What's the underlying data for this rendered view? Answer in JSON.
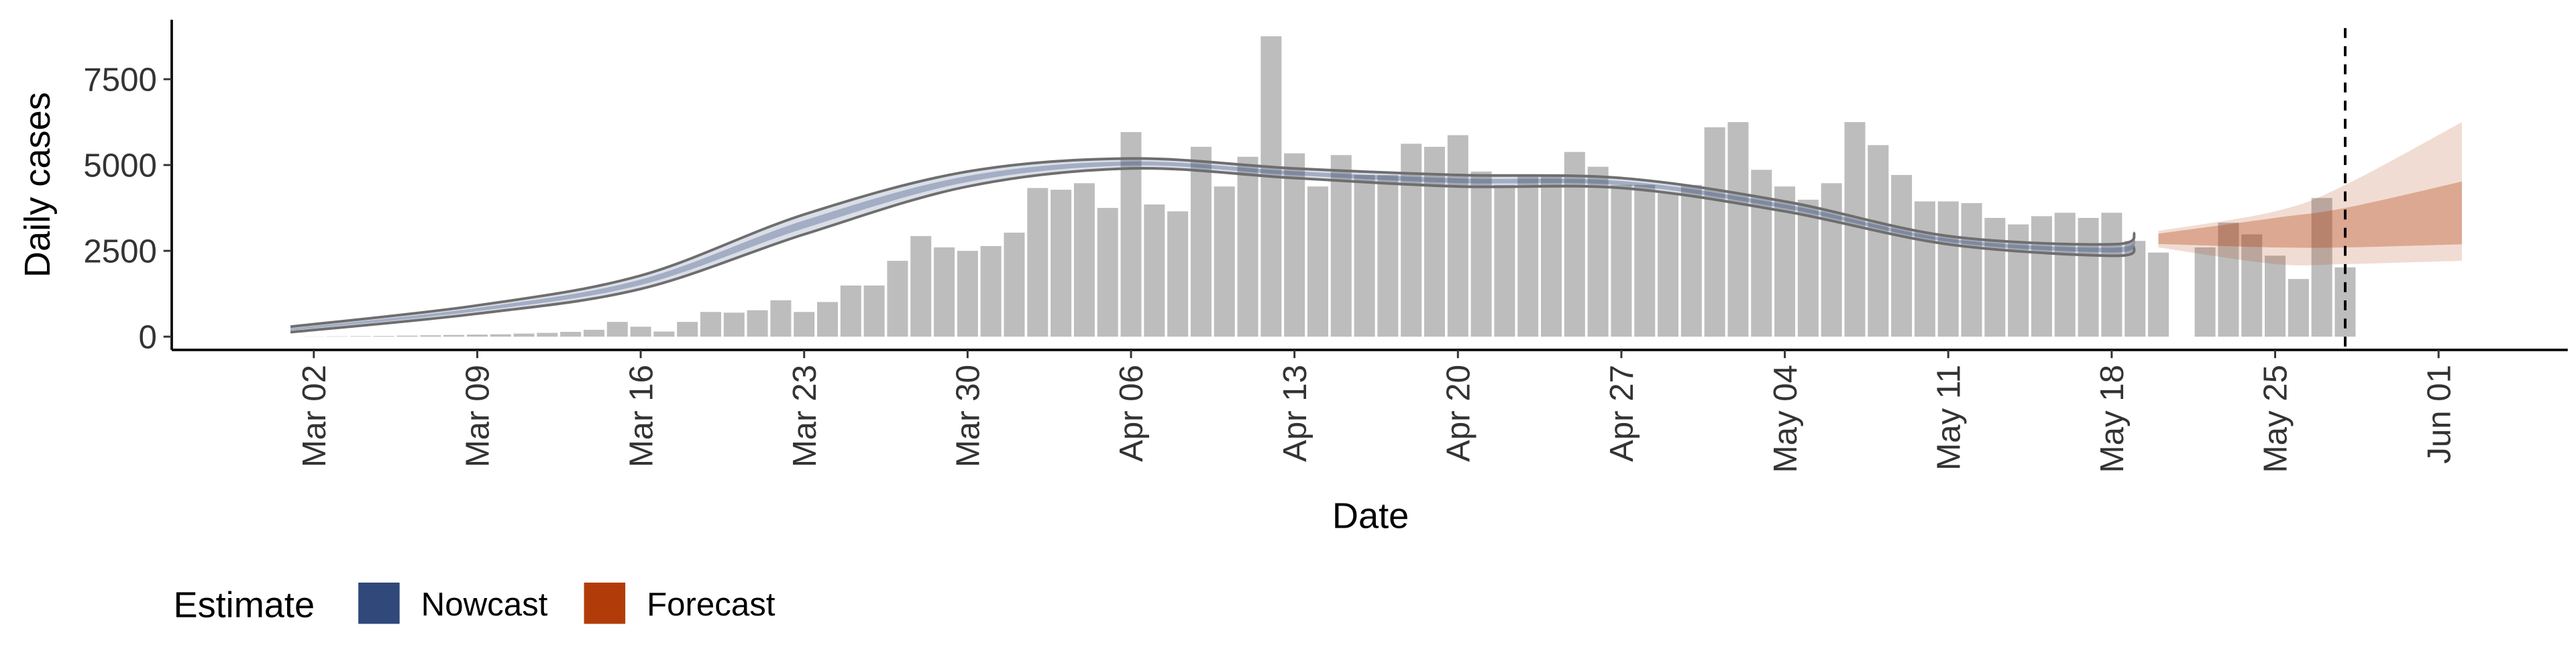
{
  "chart_data": {
    "type": "bar-band",
    "x_label": "Date",
    "y_label": "Daily cases",
    "legend_title": "Estimate",
    "categories": [
      "Mar 01",
      "Mar 02",
      "Mar 03",
      "Mar 04",
      "Mar 05",
      "Mar 06",
      "Mar 07",
      "Mar 08",
      "Mar 09",
      "Mar 10",
      "Mar 11",
      "Mar 12",
      "Mar 13",
      "Mar 14",
      "Mar 15",
      "Mar 16",
      "Mar 17",
      "Mar 18",
      "Mar 19",
      "Mar 20",
      "Mar 21",
      "Mar 22",
      "Mar 23",
      "Mar 24",
      "Mar 25",
      "Mar 26",
      "Mar 27",
      "Mar 28",
      "Mar 29",
      "Mar 30",
      "Mar 31",
      "Apr 01",
      "Apr 02",
      "Apr 03",
      "Apr 04",
      "Apr 05",
      "Apr 06",
      "Apr 07",
      "Apr 08",
      "Apr 09",
      "Apr 10",
      "Apr 11",
      "Apr 12",
      "Apr 13",
      "Apr 14",
      "Apr 15",
      "Apr 16",
      "Apr 17",
      "Apr 18",
      "Apr 19",
      "Apr 20",
      "Apr 21",
      "Apr 22",
      "Apr 23",
      "Apr 24",
      "Apr 25",
      "Apr 26",
      "Apr 27",
      "Apr 28",
      "Apr 29",
      "Apr 30",
      "May 01",
      "May 02",
      "May 03",
      "May 04",
      "May 05",
      "May 06",
      "May 07",
      "May 08",
      "May 09",
      "May 10",
      "May 11",
      "May 12",
      "May 13",
      "May 14",
      "May 15",
      "May 16",
      "May 17",
      "May 18",
      "May 19",
      "May 20",
      "May 21",
      "May 22",
      "May 23",
      "May 24",
      "May 25",
      "May 26",
      "May 27",
      "May 28",
      "May 29",
      "May 30",
      "May 31",
      "Jun 01",
      "Jun 02",
      "Jun 03"
    ],
    "values": [
      0,
      5,
      10,
      15,
      20,
      30,
      40,
      50,
      60,
      70,
      90,
      110,
      140,
      200,
      430,
      290,
      150,
      430,
      720,
      700,
      770,
      1060,
      720,
      1010,
      1490,
      1490,
      2210,
      2930,
      2600,
      2500,
      2640,
      3030,
      4330,
      4280,
      4470,
      3750,
      5960,
      3850,
      3650,
      5530,
      4375,
      5240,
      8750,
      5340,
      4375,
      5290,
      4710,
      4710,
      5620,
      5530,
      5870,
      4810,
      4420,
      4660,
      4660,
      5380,
      4950,
      4420,
      4420,
      4180,
      4420,
      6100,
      6250,
      4860,
      4375,
      3990,
      4470,
      6250,
      5580,
      4710,
      3940,
      3940,
      3890,
      3460,
      3270,
      3510,
      3610,
      3460,
      3610,
      2790,
      2450,
      null,
      2600,
      3320,
      2980,
      2360,
      1680,
      4040,
      2020,
      null,
      null,
      null,
      null,
      null,
      null
    ],
    "bar_color": "#bdbdbd",
    "series": [
      {
        "name": "Nowcast",
        "color": "#30487a",
        "line_color": "#6e6e6e",
        "x": [
          "Mar 01",
          "Mar 09",
          "Mar 16",
          "Mar 23",
          "Mar 30",
          "Apr 06",
          "Apr 13",
          "Apr 20",
          "Apr 27",
          "May 04",
          "May 11",
          "May 18",
          "May 19"
        ],
        "upper": [
          290,
          910,
          1780,
          3560,
          4810,
          5190,
          4900,
          4710,
          4620,
          3940,
          2930,
          2690,
          3030
        ],
        "lower": [
          130,
          670,
          1390,
          2980,
          4375,
          4900,
          4620,
          4375,
          4330,
          3650,
          2690,
          2355,
          2600
        ],
        "inner_upper": [
          242,
          838,
          1663,
          3386,
          4680,
          5103,
          4816,
          4610,
          4533,
          3853,
          2858,
          2590,
          2901
        ],
        "inner_lower": [
          178,
          742,
          1507,
          3154,
          4506,
          4987,
          4704,
          4476,
          4417,
          3737,
          2762,
          2456,
          2729
        ]
      },
      {
        "name": "Forecast",
        "color": "#b23c09",
        "x": [
          "May 20",
          "May 25",
          "May 28",
          "Jun 02"
        ],
        "upper": [
          3080,
          3650,
          4420,
          6250
        ],
        "lower": [
          2600,
          2115,
          2115,
          2210
        ],
        "inner_upper": [
          3000,
          3460,
          3750,
          4520
        ],
        "inner_lower": [
          2700,
          2600,
          2600,
          2690
        ]
      }
    ],
    "vline": "May 28",
    "ylim": [
      -385,
      9230
    ],
    "yticks": [
      0,
      2500,
      5000,
      7500
    ],
    "xticks": [
      "Mar 02",
      "Mar 09",
      "Mar 16",
      "Mar 23",
      "Mar 30",
      "Apr 06",
      "Apr 13",
      "Apr 20",
      "Apr 27",
      "May 04",
      "May 11",
      "May 18",
      "May 25",
      "Jun 01"
    ]
  }
}
